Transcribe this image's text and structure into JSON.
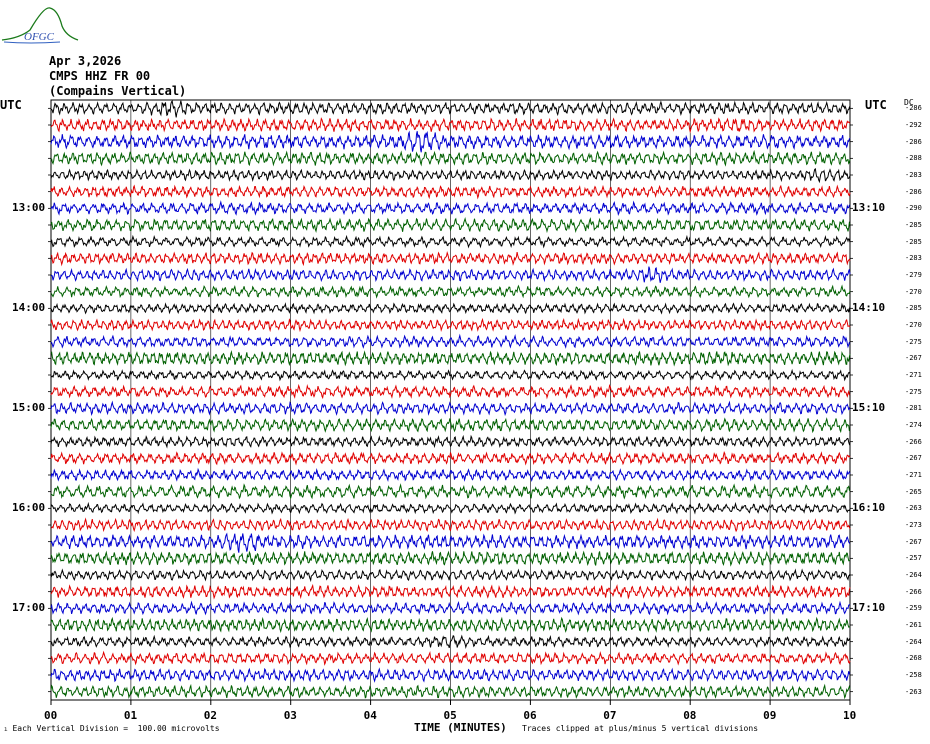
{
  "logo": {
    "text": "OFGC"
  },
  "header": {
    "date": "Apr 3,2026",
    "station": "CMPS HHZ FR 00",
    "site": "(Compains Vertical)"
  },
  "axis": {
    "utc_left": "UTC",
    "utc_right": "UTC",
    "dc_header": "DC",
    "xlabel": "TIME (MINUTES)",
    "x_ticks": [
      "00",
      "01",
      "02",
      "03",
      "04",
      "05",
      "06",
      "07",
      "08",
      "09",
      "10"
    ],
    "left_times": [
      "13:00",
      "14:00",
      "15:00",
      "16:00",
      "17:00"
    ],
    "right_times": [
      "13:10",
      "14:10",
      "15:10",
      "16:10",
      "17:10"
    ]
  },
  "footer": {
    "division": "Each Vertical Division =  100.00 microvolts",
    "clip": "Traces clipped at plus/minus 5 vertical divisions"
  },
  "chart_data": {
    "type": "line",
    "title": "",
    "xlabel": "TIME (MINUTES)",
    "xlim": [
      0,
      10
    ],
    "x_ticks": [
      0,
      1,
      2,
      3,
      4,
      5,
      6,
      7,
      8,
      9,
      10
    ],
    "grid": true,
    "trace_colors": [
      "#000000",
      "#e00000",
      "#0000d0",
      "#006000"
    ],
    "dc_offsets": [
      -286,
      -292,
      -286,
      -288,
      -283,
      -286,
      -290,
      -285,
      -285,
      -283,
      -279,
      -270,
      -285,
      -270,
      -275,
      -267,
      -271,
      -275,
      -281,
      -274,
      -266,
      -267,
      -271,
      -265,
      -263,
      -273,
      -267,
      -257,
      -264,
      -266,
      -259,
      -261,
      -264,
      -268,
      -258,
      -263
    ],
    "series": [
      {
        "amp": 0.34,
        "burst_at": 1.5,
        "burst_amp": 0.55
      },
      {
        "amp": 0.36,
        "burst_at": 8.6,
        "burst_amp": 0.5
      },
      {
        "amp": 0.4,
        "burst_at": 4.6,
        "burst_amp": 0.75
      },
      {
        "amp": 0.36,
        "burst_at": 3.2,
        "burst_amp": 0.45
      },
      {
        "amp": 0.28,
        "burst_at": 9.7,
        "burst_amp": 0.4
      },
      {
        "amp": 0.32,
        "burst_at": -1,
        "burst_amp": 0
      },
      {
        "amp": 0.33,
        "burst_at": -1,
        "burst_amp": 0
      },
      {
        "amp": 0.36,
        "burst_at": -1,
        "burst_amp": 0
      },
      {
        "amp": 0.28,
        "burst_at": -1,
        "burst_amp": 0
      },
      {
        "amp": 0.33,
        "burst_at": -1,
        "burst_amp": 0
      },
      {
        "amp": 0.32,
        "burst_at": 7.5,
        "burst_amp": 0.5
      },
      {
        "amp": 0.3,
        "burst_at": -1,
        "burst_amp": 0
      },
      {
        "amp": 0.26,
        "burst_at": -1,
        "burst_amp": 0
      },
      {
        "amp": 0.3,
        "burst_at": -1,
        "burst_amp": 0
      },
      {
        "amp": 0.32,
        "burst_at": -1,
        "burst_amp": 0
      },
      {
        "amp": 0.38,
        "burst_at": 8.3,
        "burst_amp": 0.5
      },
      {
        "amp": 0.25,
        "burst_at": -1,
        "burst_amp": 0
      },
      {
        "amp": 0.33,
        "burst_at": -1,
        "burst_amp": 0
      },
      {
        "amp": 0.33,
        "burst_at": -1,
        "burst_amp": 0
      },
      {
        "amp": 0.36,
        "burst_at": -1,
        "burst_amp": 0
      },
      {
        "amp": 0.28,
        "burst_at": -1,
        "burst_amp": 0
      },
      {
        "amp": 0.32,
        "burst_at": -1,
        "burst_amp": 0
      },
      {
        "amp": 0.3,
        "burst_at": -1,
        "burst_amp": 0
      },
      {
        "amp": 0.36,
        "burst_at": -1,
        "burst_amp": 0
      },
      {
        "amp": 0.26,
        "burst_at": -1,
        "burst_amp": 0
      },
      {
        "amp": 0.32,
        "burst_at": -1,
        "burst_amp": 0
      },
      {
        "amp": 0.4,
        "burst_at": 2.4,
        "burst_amp": 0.7
      },
      {
        "amp": 0.38,
        "burst_at": -1,
        "burst_amp": 0
      },
      {
        "amp": 0.28,
        "burst_at": -1,
        "burst_amp": 0
      },
      {
        "amp": 0.34,
        "burst_at": -1,
        "burst_amp": 0
      },
      {
        "amp": 0.32,
        "burst_at": -1,
        "burst_amp": 0
      },
      {
        "amp": 0.36,
        "burst_at": -1,
        "burst_amp": 0
      },
      {
        "amp": 0.28,
        "burst_at": 5.0,
        "burst_amp": 0.4
      },
      {
        "amp": 0.32,
        "burst_at": -1,
        "burst_amp": 0
      },
      {
        "amp": 0.34,
        "burst_at": -1,
        "burst_amp": 0
      },
      {
        "amp": 0.34,
        "burst_at": -1,
        "burst_amp": 0
      }
    ]
  }
}
